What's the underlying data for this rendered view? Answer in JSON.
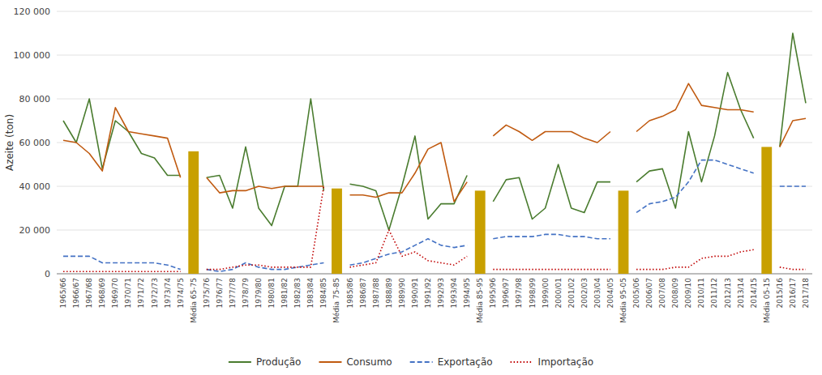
{
  "chart_data": {
    "type": "line",
    "categories": [
      "1965/66",
      "1966/67",
      "1967/68",
      "1968/69",
      "1969/70",
      "1970/71",
      "1971/72",
      "1972/73",
      "1973/74",
      "1974/75",
      "Média 65-75",
      "1975/76",
      "1976/77",
      "1977/78",
      "1978/79",
      "1979/80",
      "1980/81",
      "1981/82",
      "1982/83",
      "1983/84",
      "1984/85",
      "Média 75-85",
      "1985/86",
      "1986/87",
      "1987/88",
      "1988/89",
      "1989/90",
      "1990/91",
      "1991/92",
      "1992/93",
      "1993/94",
      "1994/95",
      "Média 85-95",
      "1995/96",
      "1996/97",
      "1997/98",
      "1998/99",
      "1999/00",
      "2000/01",
      "2001/02",
      "2002/03",
      "2003/04",
      "2004/05",
      "Média 95-05",
      "2005/06",
      "2006/07",
      "2007/08",
      "2008/09",
      "2009/10",
      "2010/11",
      "2011/12",
      "2012/13",
      "2013/14",
      "2014/15",
      "Média 05-15",
      "2015/16",
      "2016/17",
      "2017/18"
    ],
    "series": [
      {
        "type": "bar",
        "color": "#c8a000",
        "values": [
          null,
          null,
          null,
          null,
          null,
          null,
          null,
          null,
          null,
          null,
          56000,
          null,
          null,
          null,
          null,
          null,
          null,
          null,
          null,
          null,
          null,
          39000,
          null,
          null,
          null,
          null,
          null,
          null,
          null,
          null,
          null,
          null,
          38000,
          null,
          null,
          null,
          null,
          null,
          null,
          null,
          null,
          null,
          null,
          38000,
          null,
          null,
          null,
          null,
          null,
          null,
          null,
          null,
          null,
          null,
          58000,
          null,
          null,
          null
        ]
      },
      {
        "name": "Produção",
        "type": "line",
        "color": "#4a7c2f",
        "line_style": "solid",
        "values": [
          70000,
          60000,
          80000,
          48000,
          70000,
          65000,
          55000,
          53000,
          45000,
          45000,
          null,
          44000,
          45000,
          30000,
          58000,
          30000,
          22000,
          40000,
          40000,
          80000,
          38000,
          null,
          41000,
          40000,
          38000,
          20000,
          40000,
          63000,
          25000,
          32000,
          32000,
          45000,
          null,
          33000,
          43000,
          44000,
          25000,
          30000,
          50000,
          30000,
          28000,
          42000,
          42000,
          null,
          42000,
          47000,
          48000,
          30000,
          65000,
          42000,
          63000,
          92000,
          75000,
          62000,
          null,
          58000,
          110000,
          78000
        ]
      },
      {
        "name": "Consumo",
        "type": "line",
        "color": "#c05a10",
        "line_style": "solid",
        "values": [
          61000,
          60000,
          55000,
          47000,
          76000,
          65000,
          64000,
          63000,
          62000,
          44000,
          null,
          44000,
          37000,
          38000,
          38000,
          40000,
          39000,
          40000,
          40000,
          40000,
          40000,
          null,
          36000,
          36000,
          35000,
          37000,
          37000,
          46000,
          57000,
          60000,
          33000,
          42000,
          null,
          63000,
          68000,
          65000,
          61000,
          65000,
          65000,
          65000,
          62000,
          60000,
          65000,
          null,
          65000,
          70000,
          72000,
          75000,
          87000,
          77000,
          76000,
          75000,
          75000,
          74000,
          null,
          58000,
          70000,
          71000
        ]
      },
      {
        "name": "Exportação",
        "type": "line",
        "color": "#4472c4",
        "line_style": "dashed",
        "values": [
          8000,
          8000,
          8000,
          5000,
          5000,
          5000,
          5000,
          5000,
          4000,
          2000,
          null,
          2000,
          1000,
          2000,
          5000,
          3000,
          2000,
          2000,
          3000,
          4000,
          5000,
          null,
          4000,
          5000,
          7000,
          9000,
          10000,
          13000,
          16000,
          13000,
          12000,
          13000,
          null,
          16000,
          17000,
          17000,
          17000,
          18000,
          18000,
          17000,
          17000,
          16000,
          16000,
          null,
          28000,
          32000,
          33000,
          35000,
          42000,
          52000,
          52000,
          50000,
          48000,
          46000,
          null,
          40000,
          40000,
          40000
        ]
      },
      {
        "name": "Importação",
        "type": "line",
        "color": "#c00000",
        "line_style": "dotted",
        "values": [
          1000,
          1000,
          1000,
          1000,
          1000,
          1000,
          1000,
          1000,
          1000,
          1000,
          null,
          2000,
          2000,
          3000,
          4000,
          4000,
          3000,
          3000,
          3000,
          3000,
          40000,
          null,
          3000,
          4000,
          5000,
          20000,
          8000,
          10000,
          6000,
          5000,
          4000,
          8000,
          null,
          2000,
          2000,
          2000,
          2000,
          2000,
          2000,
          2000,
          2000,
          2000,
          2000,
          null,
          2000,
          2000,
          2000,
          3000,
          3000,
          7000,
          8000,
          8000,
          10000,
          11000,
          null,
          3000,
          2000,
          2000
        ]
      }
    ],
    "y_label": "Azeite (ton)",
    "ylim": [
      0,
      120000
    ],
    "yticks": [
      0,
      {
        "value": 20000,
        "label": "20 000"
      },
      {
        "value": 40000,
        "label": "40 000"
      },
      {
        "value": 60000,
        "label": "60 000"
      },
      {
        "value": 80000,
        "label": "80 000"
      },
      {
        "value": 100000,
        "label": "100 000"
      },
      {
        "value": 120000,
        "label": "120 000"
      }
    ],
    "grid": true,
    "legend": "bottom"
  }
}
